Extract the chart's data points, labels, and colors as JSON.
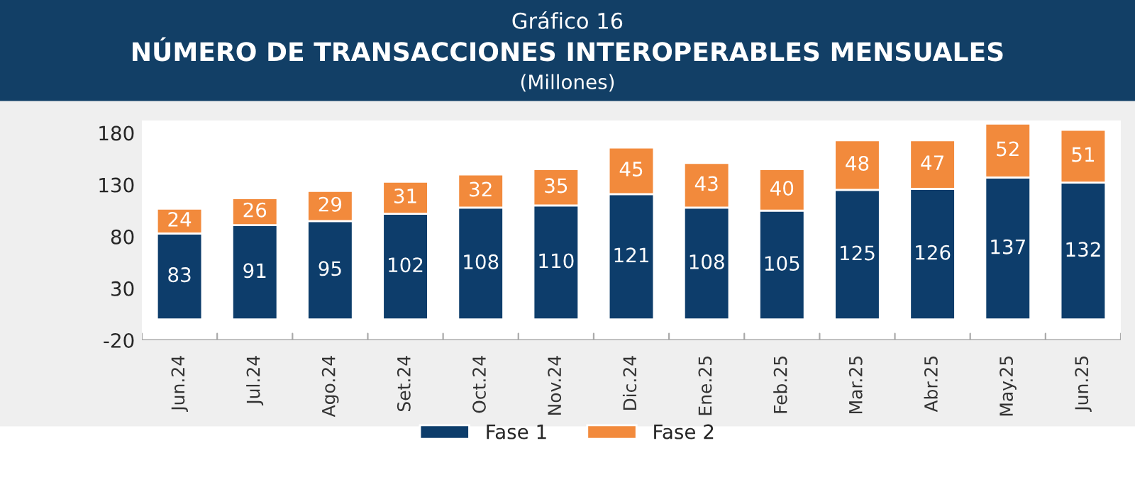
{
  "chart_data": {
    "type": "bar",
    "title": "NÚMERO DE TRANSACCIONES INTEROPERABLES MENSUALES",
    "subtitle": "(Millones)",
    "annotations": [
      "Gráfico 16"
    ],
    "categories": [
      "Jun.24",
      "Jul.24",
      "Ago.24",
      "Set.24",
      "Oct.24",
      "Nov.24",
      "Dic.24",
      "Ene.25",
      "Feb.25",
      "Mar.25",
      "Abr.25",
      "May.25",
      "Jun.25"
    ],
    "stacked": true,
    "series": [
      {
        "name": "Fase 1",
        "color": "#0d3d6b",
        "values": [
          83,
          91,
          95,
          102,
          108,
          110,
          121,
          108,
          105,
          125,
          126,
          137,
          132
        ]
      },
      {
        "name": "Fase 2",
        "color": "#f28a3c",
        "values": [
          24,
          26,
          29,
          31,
          32,
          35,
          45,
          43,
          40,
          48,
          47,
          52,
          51
        ]
      }
    ],
    "ylim": [
      -20,
      192
    ],
    "yticks": [
      -20,
      30,
      80,
      130,
      180
    ],
    "data_labels": true,
    "grid": false,
    "legend": "bottom"
  }
}
